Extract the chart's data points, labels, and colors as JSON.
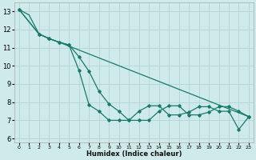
{
  "xlabel": "Humidex (Indice chaleur)",
  "ylabel": "",
  "bg_color": "#ceeaea",
  "grid_color": "#b8d8d8",
  "line_color": "#1a7a6a",
  "xlim": [
    -0.5,
    23.5
  ],
  "ylim": [
    5.8,
    13.5
  ],
  "yticks": [
    6,
    7,
    8,
    9,
    10,
    11,
    12,
    13
  ],
  "xticks": [
    0,
    1,
    2,
    3,
    4,
    5,
    6,
    7,
    8,
    9,
    10,
    11,
    12,
    13,
    14,
    15,
    16,
    17,
    18,
    19,
    20,
    21,
    22,
    23
  ],
  "curve1_x": [
    0,
    1,
    2,
    3,
    4,
    23
  ],
  "curve1_y": [
    13.1,
    12.8,
    11.75,
    11.5,
    11.3,
    7.2
  ],
  "curve2_x": [
    0,
    2,
    3,
    4,
    5,
    6,
    7,
    8,
    9,
    10,
    11,
    12,
    13,
    14,
    15,
    16,
    17,
    18,
    19,
    20,
    21,
    22,
    23
  ],
  "curve2_y": [
    13.1,
    11.75,
    11.5,
    11.3,
    11.15,
    10.5,
    9.7,
    8.6,
    7.9,
    7.5,
    7.0,
    7.0,
    7.0,
    7.5,
    7.8,
    7.8,
    7.3,
    7.3,
    7.45,
    7.75,
    7.75,
    7.5,
    7.2
  ],
  "curve3_x": [
    0,
    2,
    3,
    4,
    5,
    6,
    7,
    8,
    9,
    10,
    11,
    12,
    13,
    14,
    15,
    16,
    17,
    18,
    19,
    20,
    21,
    22,
    23
  ],
  "curve3_y": [
    13.1,
    11.75,
    11.5,
    11.3,
    11.15,
    9.75,
    7.85,
    7.5,
    7.0,
    7.0,
    7.0,
    7.5,
    7.8,
    7.8,
    7.3,
    7.3,
    7.45,
    7.75,
    7.75,
    7.5,
    7.5,
    6.5,
    7.2
  ]
}
